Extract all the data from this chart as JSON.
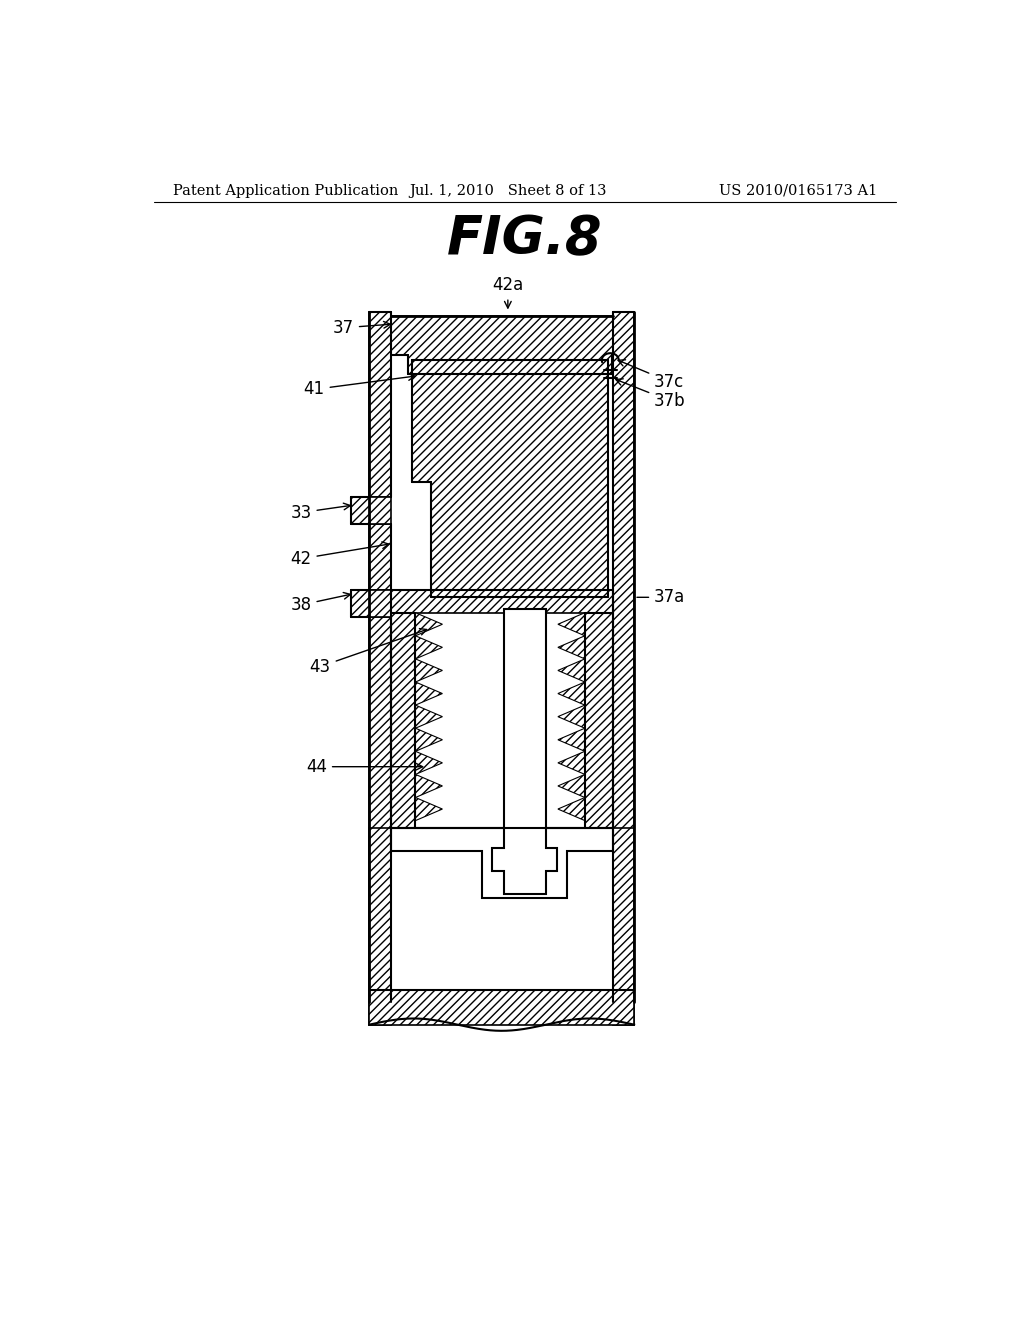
{
  "title": "FIG.8",
  "header_left": "Patent Application Publication",
  "header_mid": "Jul. 1, 2010   Sheet 8 of 13",
  "header_right": "US 2010/0165173 A1",
  "bg_color": "#ffffff"
}
